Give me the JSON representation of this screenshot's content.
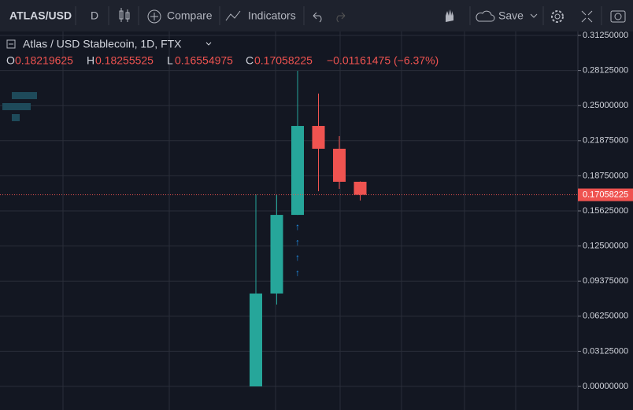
{
  "toolbar": {
    "symbol": "ATLAS/USD",
    "interval": "D",
    "compare": "Compare",
    "indicators": "Indicators",
    "save": "Save"
  },
  "chart_data": {
    "type": "candlestick",
    "title": "Atlas / USD Stablecoin, 1D, FTX",
    "legend_labels": [
      "O",
      "H",
      "L",
      "C"
    ],
    "change_label": "−0.01161475 (−6.37%)",
    "categories": [
      null,
      null,
      null,
      null,
      null,
      null
    ],
    "open": [
      0,
      0.0827,
      0.1527,
      0.2319,
      0.2116,
      0.18219625
    ],
    "high": [
      0.171,
      0.171,
      0.281,
      0.2607,
      0.2228,
      0.18255525
    ],
    "low": [
      0,
      0.0729,
      0.1527,
      0.1738,
      0.1759,
      0.16554975
    ],
    "close": [
      0.0827,
      0.1527,
      0.2319,
      0.2116,
      0.1822,
      0.17058225
    ],
    "up_color": "#26a69a",
    "down_color": "#ef5350",
    "arrows": [
      "↑",
      "↑",
      "↑",
      "↑"
    ],
    "ylim": [
      -0.021,
      0.316
    ],
    "yticks": [
      {
        "value": 0,
        "label": "0.00000000"
      },
      {
        "value": 0.03125,
        "label": "0.03125000"
      },
      {
        "value": 0.0625,
        "label": "0.06250000"
      },
      {
        "value": 0.09375,
        "label": "0.09375000"
      },
      {
        "value": 0.125,
        "label": "0.12500000"
      },
      {
        "value": 0.15625,
        "label": "0.15625000"
      },
      {
        "value": 0.1875,
        "label": "0.18750000"
      },
      {
        "value": 0.21875,
        "label": "0.21875000"
      },
      {
        "value": 0.25,
        "label": "0.25000000"
      },
      {
        "value": 0.28125,
        "label": "0.28125000"
      },
      {
        "value": 0.3125,
        "label": "0.31250000"
      }
    ],
    "grid": true
  }
}
